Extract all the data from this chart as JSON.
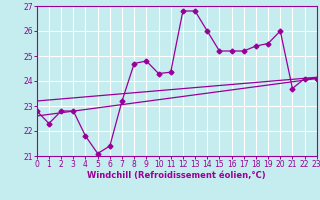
{
  "xlabel": "Windchill (Refroidissement éolien,°C)",
  "xlim": [
    0,
    23
  ],
  "ylim": [
    21,
    27
  ],
  "yticks": [
    21,
    22,
    23,
    24,
    25,
    26,
    27
  ],
  "xticks": [
    0,
    1,
    2,
    3,
    4,
    5,
    6,
    7,
    8,
    9,
    10,
    11,
    12,
    13,
    14,
    15,
    16,
    17,
    18,
    19,
    20,
    21,
    22,
    23
  ],
  "background_color": "#c5ecee",
  "grid_color": "#ffffff",
  "line_color": "#990099",
  "series1_x": [
    0,
    1,
    2,
    3,
    4,
    5,
    6,
    7,
    8,
    9,
    10,
    11,
    12,
    13,
    14,
    15,
    16,
    17,
    18,
    19,
    20,
    21,
    22,
    23
  ],
  "series1_y": [
    22.8,
    22.3,
    22.8,
    22.8,
    21.8,
    21.1,
    21.4,
    23.2,
    24.7,
    24.8,
    24.3,
    24.35,
    26.8,
    26.8,
    26.0,
    25.2,
    25.2,
    25.2,
    25.4,
    25.5,
    26.0,
    23.7,
    24.1,
    24.1
  ],
  "series2_x": [
    0,
    23
  ],
  "series2_y": [
    22.6,
    24.1
  ],
  "series3_x": [
    0,
    23
  ],
  "series3_y": [
    23.2,
    24.15
  ]
}
